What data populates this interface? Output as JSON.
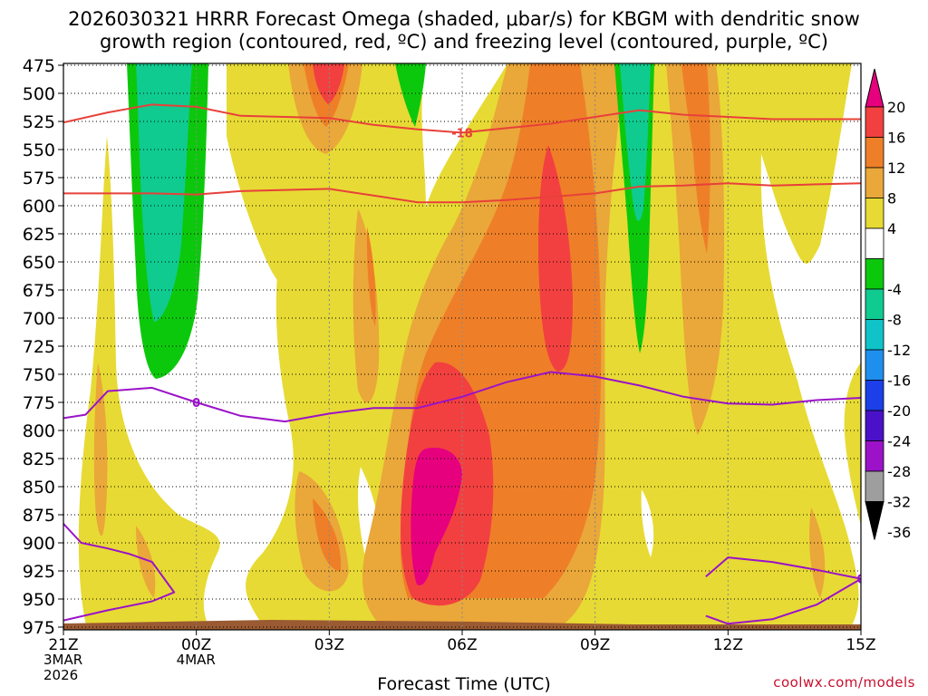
{
  "chart_data": {
    "type": "heatmap",
    "title_line1": "2026030321 HRRR Forecast Omega (shaded, μbar/s) for KBGM with dendritic snow",
    "title_line2": "growth region (contoured, red, ºC) and freezing level (contoured, purple, ºC)",
    "xlabel": "Forecast Time (UTC)",
    "ylabel": "",
    "credit": "coolwx.com/models",
    "y_ticks": [
      "475",
      "500",
      "525",
      "550",
      "575",
      "600",
      "625",
      "650",
      "675",
      "700",
      "725",
      "750",
      "775",
      "800",
      "825",
      "850",
      "875",
      "900",
      "925",
      "950",
      "975"
    ],
    "x_ticks": [
      {
        "label": "21Z",
        "sub1": "3MAR",
        "sub2": "2026",
        "hour": 0
      },
      {
        "label": "00Z",
        "sub1": "4MAR",
        "sub2": "",
        "hour": 3
      },
      {
        "label": "03Z",
        "sub1": "",
        "sub2": "",
        "hour": 6
      },
      {
        "label": "06Z",
        "sub1": "",
        "sub2": "",
        "hour": 9
      },
      {
        "label": "09Z",
        "sub1": "",
        "sub2": "",
        "hour": 12
      },
      {
        "label": "12Z",
        "sub1": "",
        "sub2": "",
        "hour": 15
      },
      {
        "label": "15Z",
        "sub1": "",
        "sub2": "",
        "hour": 18
      }
    ],
    "xlim": [
      0,
      18
    ],
    "ylim": [
      475,
      975
    ],
    "colorbar": {
      "labels": [
        "20",
        "16",
        "12",
        "8",
        "4",
        "-4",
        "-8",
        "-12",
        "-16",
        "-20",
        "-24",
        "-28",
        "-32",
        "-36"
      ],
      "bands": [
        {
          "from": 16,
          "to": 20,
          "color": "#f24040"
        },
        {
          "from": 12,
          "to": 16,
          "color": "#ee7f28"
        },
        {
          "from": 8,
          "to": 12,
          "color": "#eaa73a"
        },
        {
          "from": 4,
          "to": 8,
          "color": "#e7da34"
        },
        {
          "from": -4,
          "to": 4,
          "color": "#ffffff"
        },
        {
          "from": -8,
          "to": -4,
          "color": "#0cc80c"
        },
        {
          "from": -12,
          "to": -8,
          "color": "#0fcb8f"
        },
        {
          "from": -16,
          "to": -12,
          "color": "#0fc3c8"
        },
        {
          "from": -20,
          "to": -16,
          "color": "#1f8fee"
        },
        {
          "from": -24,
          "to": -20,
          "color": "#1c3fe8"
        },
        {
          "from": -28,
          "to": -24,
          "color": "#4a12c8"
        },
        {
          "from": -32,
          "to": -28,
          "color": "#9b12c8"
        },
        {
          "from": -36,
          "to": -32,
          "color": "#9e9e9e"
        }
      ],
      "top_color": "#e6007e",
      "bottom_color": "#000000"
    },
    "contours": [
      {
        "name": "dgz-upper-minus18",
        "label": "-18",
        "color": "#e8403a",
        "points": [
          [
            0,
            526
          ],
          [
            1,
            517
          ],
          [
            2,
            510
          ],
          [
            3,
            512
          ],
          [
            4,
            520
          ],
          [
            5,
            521
          ],
          [
            6,
            522
          ],
          [
            7,
            528
          ],
          [
            8,
            532
          ],
          [
            9,
            535
          ],
          [
            10,
            531
          ],
          [
            11,
            527
          ],
          [
            12,
            521
          ],
          [
            13,
            515
          ],
          [
            14,
            519
          ],
          [
            15,
            521
          ],
          [
            16,
            523
          ],
          [
            17,
            523
          ],
          [
            18,
            523
          ]
        ]
      },
      {
        "name": "dgz-lower-minus12",
        "label": "",
        "color": "#e8403a",
        "points": [
          [
            0,
            589
          ],
          [
            1,
            589
          ],
          [
            2,
            589
          ],
          [
            3,
            590
          ],
          [
            4,
            587
          ],
          [
            5,
            586
          ],
          [
            6,
            585
          ],
          [
            7,
            591
          ],
          [
            8,
            597
          ],
          [
            9,
            597
          ],
          [
            10,
            595
          ],
          [
            11,
            592
          ],
          [
            12,
            589
          ],
          [
            13,
            583
          ],
          [
            14,
            582
          ],
          [
            15,
            580
          ],
          [
            16,
            582
          ],
          [
            17,
            581
          ],
          [
            18,
            580
          ]
        ]
      },
      {
        "name": "freezing-level-upper",
        "label": "0",
        "color": "#9b12c8",
        "points": [
          [
            0,
            789
          ],
          [
            0.5,
            786
          ],
          [
            1,
            765
          ],
          [
            2,
            762
          ],
          [
            3,
            775
          ],
          [
            4,
            787
          ],
          [
            5,
            792
          ],
          [
            6,
            785
          ],
          [
            7,
            780
          ],
          [
            8,
            780
          ],
          [
            9,
            770
          ],
          [
            10,
            757
          ],
          [
            11,
            748
          ],
          [
            12,
            752
          ],
          [
            13,
            760
          ],
          [
            14,
            770
          ],
          [
            15,
            776
          ],
          [
            16,
            777
          ],
          [
            17,
            773
          ],
          [
            18,
            771
          ]
        ]
      },
      {
        "name": "freezing-level-lower-left",
        "label": "",
        "color": "#9b12c8",
        "points": [
          [
            0,
            883
          ],
          [
            0.4,
            900
          ],
          [
            1,
            905
          ],
          [
            1.5,
            910
          ],
          [
            2,
            917
          ],
          [
            2.5,
            944
          ],
          [
            2,
            952
          ],
          [
            1,
            960
          ],
          [
            0,
            969
          ]
        ]
      },
      {
        "name": "freezing-level-lower-right",
        "label": "0",
        "color": "#9b12c8",
        "points": [
          [
            14.5,
            930
          ],
          [
            15,
            913
          ],
          [
            16,
            917
          ],
          [
            17,
            924
          ],
          [
            18,
            932
          ],
          [
            17,
            955
          ],
          [
            16,
            968
          ],
          [
            15,
            972
          ],
          [
            14.5,
            965
          ]
        ]
      }
    ],
    "omega_regions": [
      {
        "name": "left-yellow-plume",
        "value": 6,
        "color": "#e7da34"
      },
      {
        "name": "green-downdraft-left",
        "value": -8,
        "color": "#0cc80c"
      },
      {
        "name": "teal-downdraft-left",
        "value": -12,
        "color": "#0fcb8f"
      },
      {
        "name": "central-updraft-core",
        "value": 20,
        "color": "#e6007e"
      },
      {
        "name": "upper-red-core",
        "value": 18,
        "color": "#f24040"
      },
      {
        "name": "green-downdraft-right",
        "value": -8,
        "color": "#0cc80c"
      },
      {
        "name": "teal-downdraft-right",
        "value": -12,
        "color": "#0fcb8f"
      }
    ]
  }
}
